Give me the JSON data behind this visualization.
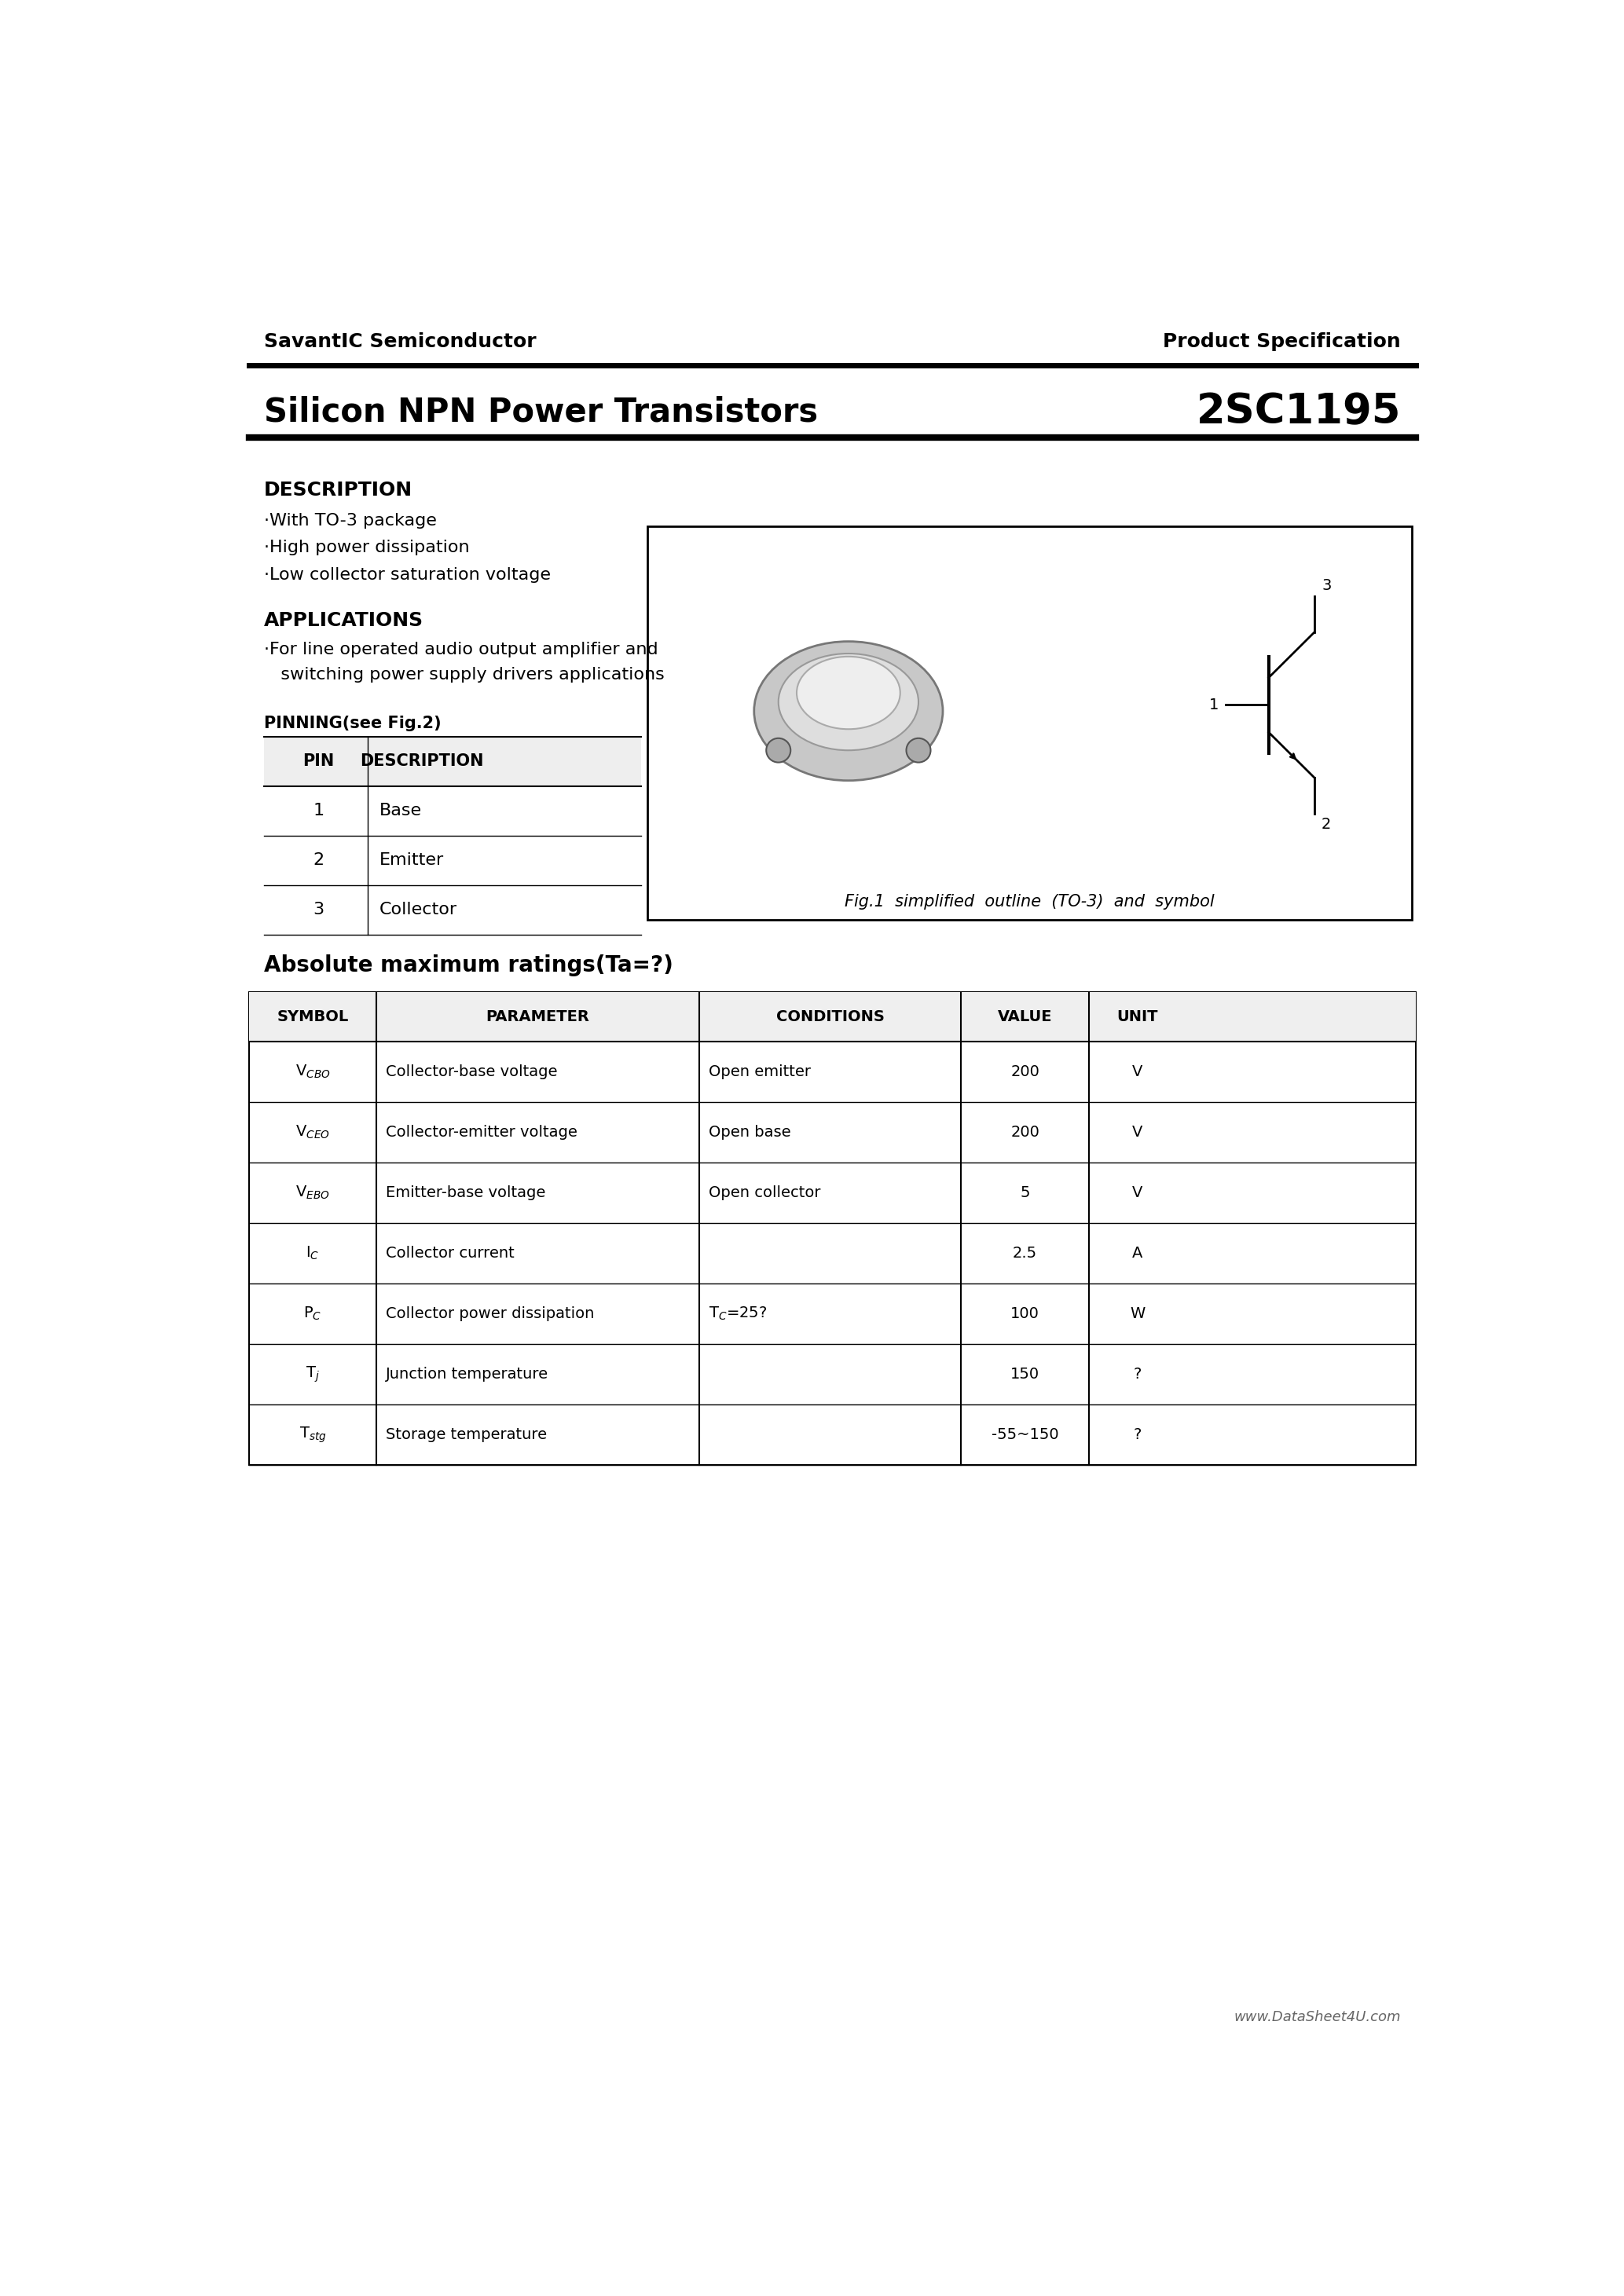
{
  "company": "SavantIC Semiconductor",
  "product_spec": "Product Specification",
  "title": "Silicon NPN Power Transistors",
  "part_number": "2SC1195",
  "bg_color": "#ffffff",
  "text_color": "#000000",
  "description_title": "DESCRIPTION",
  "description_items": [
    "·With TO-3 package",
    "·High power dissipation",
    "·Low collector saturation voltage"
  ],
  "applications_title": "APPLICATIONS",
  "applications_items": [
    "·For line operated audio output amplifier and",
    "   switching power supply drivers applications"
  ],
  "pinning_title": "PINNING(see Fig.2)",
  "pin_headers": [
    "PIN",
    "DESCRIPTION"
  ],
  "pin_rows": [
    [
      "1",
      "Base"
    ],
    [
      "2",
      "Emitter"
    ],
    [
      "3",
      "Collector"
    ]
  ],
  "fig_caption": "Fig.1  simplified  outline  (TO-3)  and  symbol",
  "abs_max_title": "Absolute maximum ratings(Ta=?)",
  "table_headers": [
    "SYMBOL",
    "PARAMETER",
    "CONDITIONS",
    "VALUE",
    "UNIT"
  ],
  "abs_rows": [
    [
      "V$_{CBO}$",
      "Collector-base voltage",
      "Open emitter",
      "200",
      "V"
    ],
    [
      "V$_{CEO}$",
      "Collector-emitter voltage",
      "Open base",
      "200",
      "V"
    ],
    [
      "V$_{EBO}$",
      "Emitter-base voltage",
      "Open collector",
      "5",
      "V"
    ],
    [
      "I$_{C}$",
      "Collector current",
      "",
      "2.5",
      "A"
    ],
    [
      "P$_{C}$",
      "Collector power dissipation",
      "T$_{C}$=25?",
      "100",
      "W"
    ],
    [
      "T$_{j}$",
      "Junction temperature",
      "",
      "150",
      "?"
    ],
    [
      "T$_{stg}$",
      "Storage temperature",
      "",
      "-55~150",
      "?"
    ]
  ],
  "footer": "www.DataSheet4U.com"
}
